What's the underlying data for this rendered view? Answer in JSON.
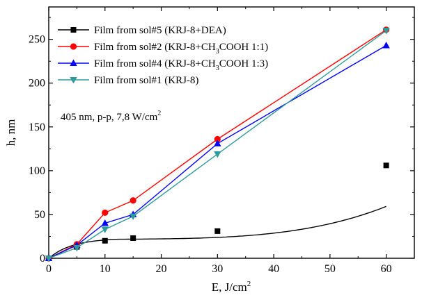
{
  "chart_data": {
    "type": "line",
    "xlabel": "E, J/cm",
    "xlabel_sup": "2",
    "ylabel": "h, nm",
    "xlim": [
      0,
      65
    ],
    "ylim": [
      0,
      287
    ],
    "xticks": [
      0,
      10,
      20,
      30,
      40,
      50,
      60
    ],
    "yticks": [
      0,
      50,
      100,
      150,
      200,
      250
    ],
    "annotation": {
      "text": "405 nm, p-p, 7,8 W/cm",
      "sup": "2"
    },
    "legend_placement": "top-left",
    "series": [
      {
        "name": "Film from sol#5 (KRJ-8+DEA)",
        "color": "#000000",
        "marker": "square",
        "fit": "smooth-curve",
        "x": [
          0,
          5,
          10,
          15,
          30,
          60
        ],
        "y": [
          0,
          13,
          20,
          23,
          31,
          106
        ]
      },
      {
        "name": "Film from sol#2 (KRJ-8+CH3COOH 1:1)",
        "name_parts": [
          "Film from sol#2 (KRJ-8+CH",
          "3",
          "COOH 1:1)"
        ],
        "color": "#ff0000",
        "marker": "circle",
        "x": [
          0,
          5,
          10,
          15,
          30,
          60
        ],
        "y": [
          0,
          16,
          52,
          66,
          136,
          261
        ]
      },
      {
        "name": "Film from sol#4 (KRJ-8+CH3COOH 1:3)",
        "name_parts": [
          "Film from sol#4 (KRJ-8+CH",
          "3",
          "COOH 1:3)"
        ],
        "color": "#0000ff",
        "marker": "triangle-up",
        "x": [
          0,
          5,
          10,
          15,
          30,
          60
        ],
        "y": [
          0,
          15,
          40,
          50,
          131,
          243
        ]
      },
      {
        "name": "Film from sol#1 (KRJ-8)",
        "color": "#2e9a9a",
        "marker": "triangle-down",
        "x": [
          0,
          5,
          10,
          15,
          30,
          60
        ],
        "y": [
          0,
          12,
          33,
          48,
          119,
          260
        ]
      }
    ]
  }
}
